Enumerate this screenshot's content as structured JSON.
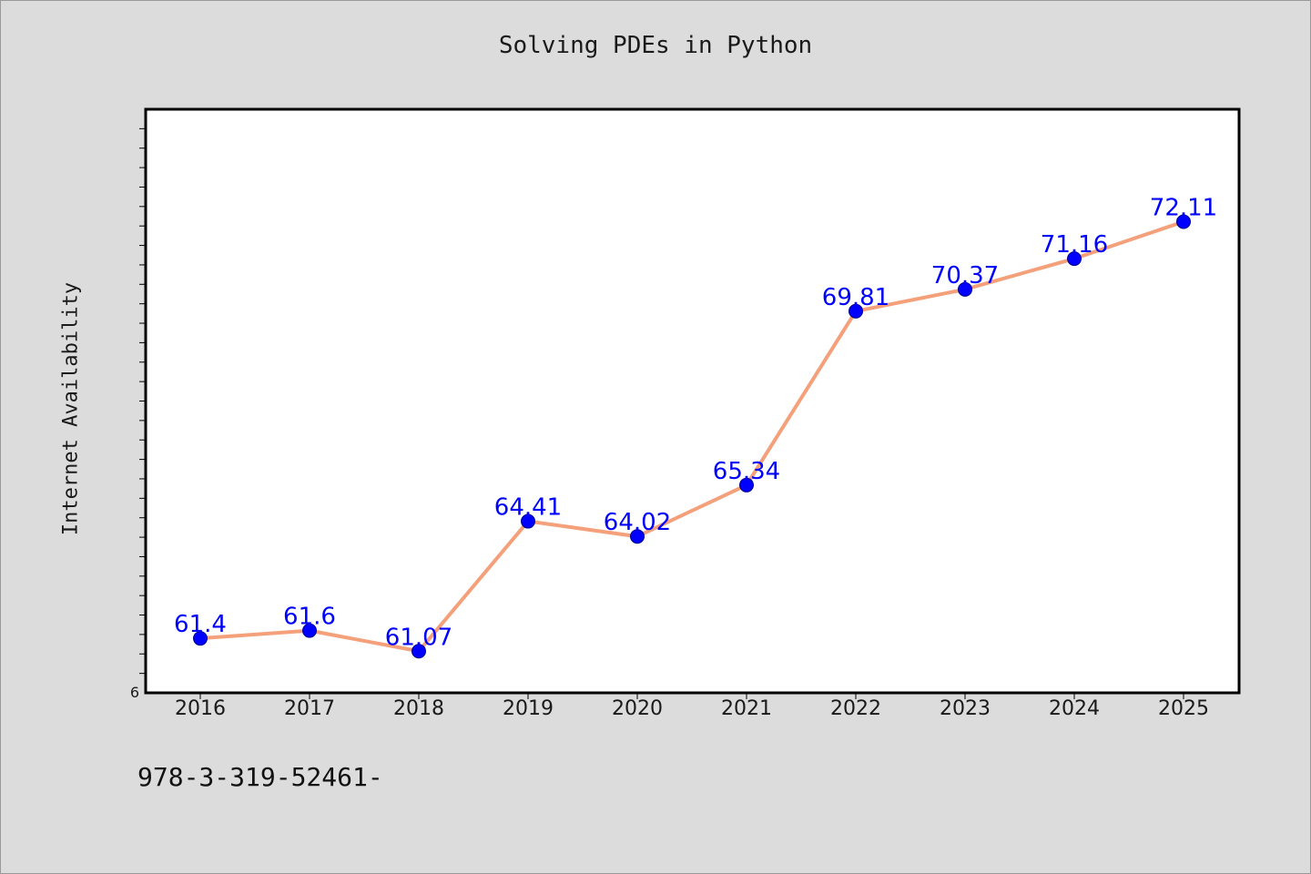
{
  "page": {
    "title": "Solving PDEs in Python",
    "footer_text": "978-3-319-52461-"
  },
  "chart_data": {
    "type": "line",
    "title": "Solving PDEs in Python",
    "xlabel": "",
    "ylabel": "Internet Availability",
    "categories": [
      "2016",
      "2017",
      "2018",
      "2019",
      "2020",
      "2021",
      "2022",
      "2023",
      "2024",
      "2025"
    ],
    "series": [
      {
        "values": [
          61.4,
          61.6,
          61.07,
          64.41,
          64.02,
          65.34,
          69.81,
          70.37,
          71.16,
          72.11
        ],
        "labels": [
          "61.4",
          "61.6",
          "61.07",
          "64.41",
          "64.02",
          "65.34",
          "69.81",
          "70.37",
          "71.16",
          "72.11"
        ],
        "line_color": "#f4a07a",
        "marker_color": "#0000ff"
      }
    ],
    "ylim": [
      60.0,
      75.0
    ],
    "y_tick_labels": [
      "6"
    ],
    "grid": false,
    "legend": "none"
  }
}
